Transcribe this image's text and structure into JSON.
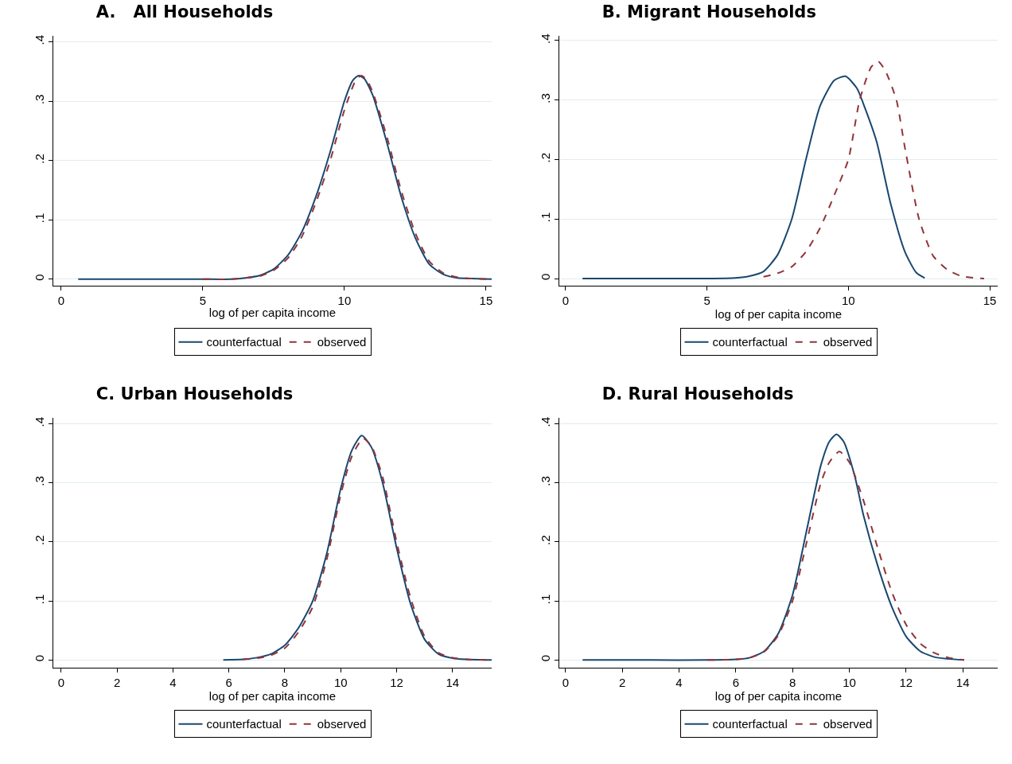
{
  "chart_data": [
    {
      "type": "line",
      "title": "A.   All Households",
      "xlabel": "log of per capita income",
      "xlim": [
        -0.28,
        15.2
      ],
      "xticks": [
        0,
        5,
        10,
        15
      ],
      "ylim": [
        -0.011,
        0.41
      ],
      "yticks": [
        {
          "value": 0,
          "label": "0"
        },
        {
          "value": 0.1,
          "label": ".1"
        },
        {
          "value": 0.2,
          "label": ".2"
        },
        {
          "value": 0.3,
          "label": ".3"
        },
        {
          "value": 0.4,
          "label": ".4"
        }
      ],
      "grid": "y",
      "legend": "bottom",
      "series": [
        {
          "name": "counterfactual",
          "color": "#1a476f",
          "line_style": "solid",
          "x": [
            0.6,
            2,
            4,
            5,
            6,
            6.5,
            7,
            7.5,
            8,
            8.5,
            9,
            9.5,
            10,
            10.3,
            10.5,
            10.7,
            11,
            11.5,
            12,
            12.5,
            13,
            13.5,
            14,
            14.5,
            15.2
          ],
          "values": [
            0,
            0,
            0,
            0,
            0,
            0.002,
            0.006,
            0.017,
            0.04,
            0.08,
            0.14,
            0.215,
            0.3,
            0.335,
            0.343,
            0.338,
            0.31,
            0.23,
            0.14,
            0.07,
            0.025,
            0.008,
            0.002,
            0.001,
            0
          ]
        },
        {
          "name": "observed",
          "color": "#90353b",
          "line_style": "dashed",
          "x": [
            5,
            6,
            6.5,
            7,
            7.5,
            8,
            8.5,
            9,
            9.5,
            10,
            10.4,
            10.6,
            10.8,
            11,
            11.5,
            12,
            12.5,
            13,
            13.5,
            14,
            14.5,
            15.2
          ],
          "values": [
            0,
            0,
            0.002,
            0.005,
            0.015,
            0.035,
            0.072,
            0.13,
            0.2,
            0.285,
            0.335,
            0.343,
            0.335,
            0.315,
            0.24,
            0.15,
            0.078,
            0.03,
            0.01,
            0.003,
            0.001,
            0
          ]
        }
      ]
    },
    {
      "type": "line",
      "title": "B. Migrant Households",
      "xlabel": "log of per capita income",
      "xlim": [
        -0.22,
        15.28
      ],
      "xticks": [
        0,
        5,
        10,
        15
      ],
      "ylim": [
        -0.012,
        0.408
      ],
      "yticks": [
        {
          "value": 0,
          "label": "0"
        },
        {
          "value": 0.1,
          "label": ".1"
        },
        {
          "value": 0.2,
          "label": ".2"
        },
        {
          "value": 0.3,
          "label": ".3"
        },
        {
          "value": 0.4,
          "label": ".4"
        }
      ],
      "grid": "y",
      "legend": "bottom",
      "series": [
        {
          "name": "counterfactual",
          "color": "#1a476f",
          "line_style": "solid",
          "x": [
            0.6,
            3,
            5,
            6,
            6.5,
            7,
            7.5,
            8,
            8.5,
            9,
            9.5,
            9.9,
            10.3,
            10.6,
            11,
            11.5,
            12,
            12.4,
            12.7
          ],
          "values": [
            0,
            0,
            0,
            0.001,
            0.004,
            0.012,
            0.04,
            0.1,
            0.2,
            0.29,
            0.333,
            0.34,
            0.32,
            0.285,
            0.23,
            0.125,
            0.045,
            0.01,
            0.001
          ]
        },
        {
          "name": "observed",
          "color": "#90353b",
          "line_style": "dashed",
          "x": [
            7,
            7.5,
            8,
            8.5,
            9,
            9.5,
            10,
            10.4,
            10.8,
            11.05,
            11.3,
            11.7,
            12,
            12.5,
            13,
            13.5,
            14,
            14.8
          ],
          "values": [
            0.003,
            0.009,
            0.02,
            0.045,
            0.085,
            0.14,
            0.2,
            0.3,
            0.355,
            0.365,
            0.35,
            0.3,
            0.22,
            0.1,
            0.038,
            0.015,
            0.004,
            0
          ]
        }
      ]
    },
    {
      "type": "line",
      "title": "C. Urban Households",
      "xlabel": "log of per capita income",
      "xlim": [
        -0.28,
        15.4
      ],
      "xticks": [
        0,
        2,
        4,
        6,
        8,
        10,
        12,
        14
      ],
      "ylim": [
        -0.013,
        0.41
      ],
      "yticks": [
        {
          "value": 0,
          "label": "0"
        },
        {
          "value": 0.1,
          "label": ".1"
        },
        {
          "value": 0.2,
          "label": ".2"
        },
        {
          "value": 0.3,
          "label": ".3"
        },
        {
          "value": 0.4,
          "label": ".4"
        }
      ],
      "grid": "y",
      "legend": "bottom",
      "series": [
        {
          "name": "counterfactual",
          "color": "#1a476f",
          "line_style": "solid",
          "x": [
            5.8,
            6.5,
            7,
            7.5,
            8,
            8.5,
            9,
            9.5,
            10,
            10.4,
            10.75,
            11.1,
            11.5,
            12,
            12.5,
            13,
            13.5,
            14,
            14.5,
            15.4
          ],
          "values": [
            0,
            0.001,
            0.004,
            0.01,
            0.025,
            0.055,
            0.1,
            0.18,
            0.29,
            0.355,
            0.38,
            0.36,
            0.3,
            0.19,
            0.095,
            0.035,
            0.01,
            0.003,
            0.001,
            0
          ]
        },
        {
          "name": "observed",
          "color": "#90353b",
          "line_style": "dashed",
          "x": [
            6.5,
            7,
            7.5,
            8,
            8.5,
            9,
            9.5,
            10,
            10.4,
            10.8,
            11.1,
            11.5,
            12,
            12.5,
            13,
            13.5,
            14,
            14.5,
            15.4
          ],
          "values": [
            0.001,
            0.003,
            0.008,
            0.02,
            0.048,
            0.09,
            0.17,
            0.28,
            0.345,
            0.375,
            0.362,
            0.31,
            0.2,
            0.105,
            0.04,
            0.012,
            0.004,
            0.001,
            0
          ]
        }
      ]
    },
    {
      "type": "line",
      "title": "D. Rural Households",
      "xlabel": "log of per capita income",
      "xlim": [
        -0.22,
        15.23
      ],
      "xticks": [
        0,
        2,
        4,
        6,
        8,
        10,
        12,
        14
      ],
      "ylim": [
        -0.013,
        0.41
      ],
      "yticks": [
        {
          "value": 0,
          "label": "0"
        },
        {
          "value": 0.1,
          "label": ".1"
        },
        {
          "value": 0.2,
          "label": ".2"
        },
        {
          "value": 0.3,
          "label": ".3"
        },
        {
          "value": 0.4,
          "label": ".4"
        }
      ],
      "grid": "y",
      "legend": "bottom",
      "series": [
        {
          "name": "counterfactual",
          "color": "#1a476f",
          "line_style": "solid",
          "x": [
            0.6,
            3,
            5,
            6,
            6.5,
            7,
            7.5,
            8,
            8.5,
            9,
            9.3,
            9.55,
            9.8,
            10.2,
            10.5,
            11,
            11.5,
            12,
            12.5,
            13,
            13.5,
            14.05
          ],
          "values": [
            0,
            0,
            0,
            0.001,
            0.004,
            0.015,
            0.045,
            0.11,
            0.22,
            0.33,
            0.37,
            0.382,
            0.37,
            0.31,
            0.245,
            0.16,
            0.09,
            0.04,
            0.015,
            0.005,
            0.002,
            0
          ]
        },
        {
          "name": "observed",
          "color": "#90353b",
          "line_style": "dashed",
          "x": [
            5,
            6,
            6.5,
            7,
            7.5,
            8,
            8.5,
            9,
            9.3,
            9.65,
            10,
            10.5,
            11,
            11.5,
            12,
            12.5,
            13,
            13.5,
            14.05
          ],
          "values": [
            0,
            0.001,
            0.004,
            0.014,
            0.042,
            0.1,
            0.2,
            0.3,
            0.335,
            0.353,
            0.335,
            0.27,
            0.19,
            0.115,
            0.06,
            0.028,
            0.012,
            0.004,
            0
          ]
        }
      ]
    }
  ]
}
